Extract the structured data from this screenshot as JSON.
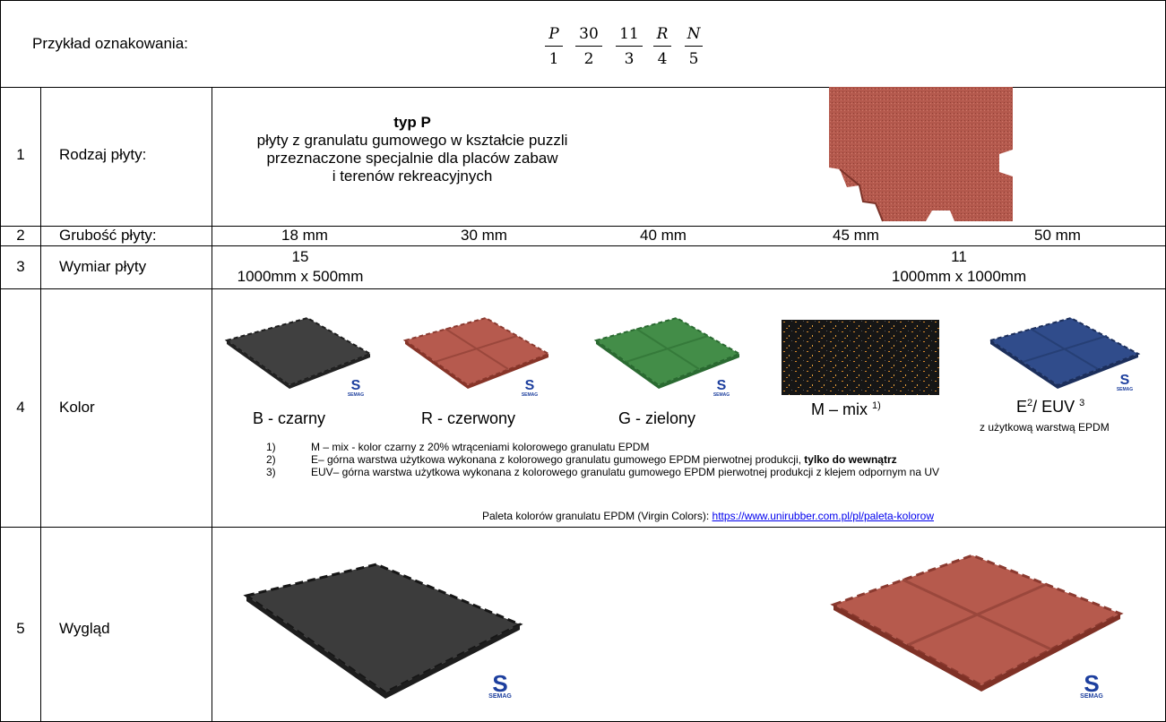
{
  "header": {
    "label": "Przykład oznakowania:",
    "code": [
      {
        "top": "P",
        "bottom": "1",
        "italic": true
      },
      {
        "top": "30",
        "bottom": "2",
        "italic": false
      },
      {
        "top": "11",
        "bottom": "3",
        "italic": false
      },
      {
        "top": "R",
        "bottom": "4",
        "italic": true
      },
      {
        "top": "N",
        "bottom": "5",
        "italic": true
      }
    ]
  },
  "rows": {
    "r1": {
      "number": "1",
      "label": "Rodzaj płyty:",
      "title": "typ P",
      "lines": [
        "płyty z granulatu gumowego w kształcie puzzli",
        "przeznaczone specjalnie dla placów zabaw",
        "i terenów rekreacyjnych"
      ]
    },
    "r2": {
      "number": "2",
      "label": "Grubość płyty:",
      "values": [
        "18 mm",
        "30 mm",
        "40 mm",
        "45 mm",
        "50 mm"
      ]
    },
    "r3": {
      "number": "3",
      "label": "Wymiar płyty",
      "left_code": "15",
      "left_size": "1000mm x 500mm",
      "right_code": "11",
      "right_size": "1000mm x 1000mm"
    },
    "r4": {
      "number": "4",
      "label": "Kolor",
      "colors": [
        {
          "label": "B - czarny",
          "hex": "#3d3d3d"
        },
        {
          "label": "R - czerwony",
          "hex": "#b5584c"
        },
        {
          "label": "G - zielony",
          "hex": "#3f8a45"
        },
        {
          "label": "M – mix",
          "sup": "1)",
          "hex": "#151515"
        },
        {
          "label_e": "E",
          "sup_e": "2",
          "sep": "/  EUV",
          "sup_euv": "3",
          "sub": "z użytkową warstwą  EPDM",
          "hex": "#2f4a8a"
        }
      ],
      "notes": [
        {
          "n": "1)",
          "text": "M – mix - kolor czarny z 20% wtrąceniami kolorowego granulatu EPDM",
          "bold": ""
        },
        {
          "n": "2)",
          "text": "E–  górna warstwa użytkowa wykonana z kolorowego granulatu gumowego EPDM pierwotnej produkcji, ",
          "bold": "tylko do wewnątrz"
        },
        {
          "n": "3)",
          "text": "EUV–  górna warstwa użytkowa wykonana z kolorowego granulatu gumowego EPDM pierwotnej produkcji z klejem odpornym na UV",
          "bold": ""
        }
      ],
      "palette_label": "Paleta kolorów granulatu EPDM (Virgin Colors): ",
      "palette_link": "https://www.unirubber.com.pl/pl/paleta-kolorow"
    },
    "r5": {
      "number": "5",
      "label": "Wygląd"
    }
  },
  "brand": {
    "mark": "S",
    "name": "SEMAG",
    "color": "#1d3f9e"
  }
}
